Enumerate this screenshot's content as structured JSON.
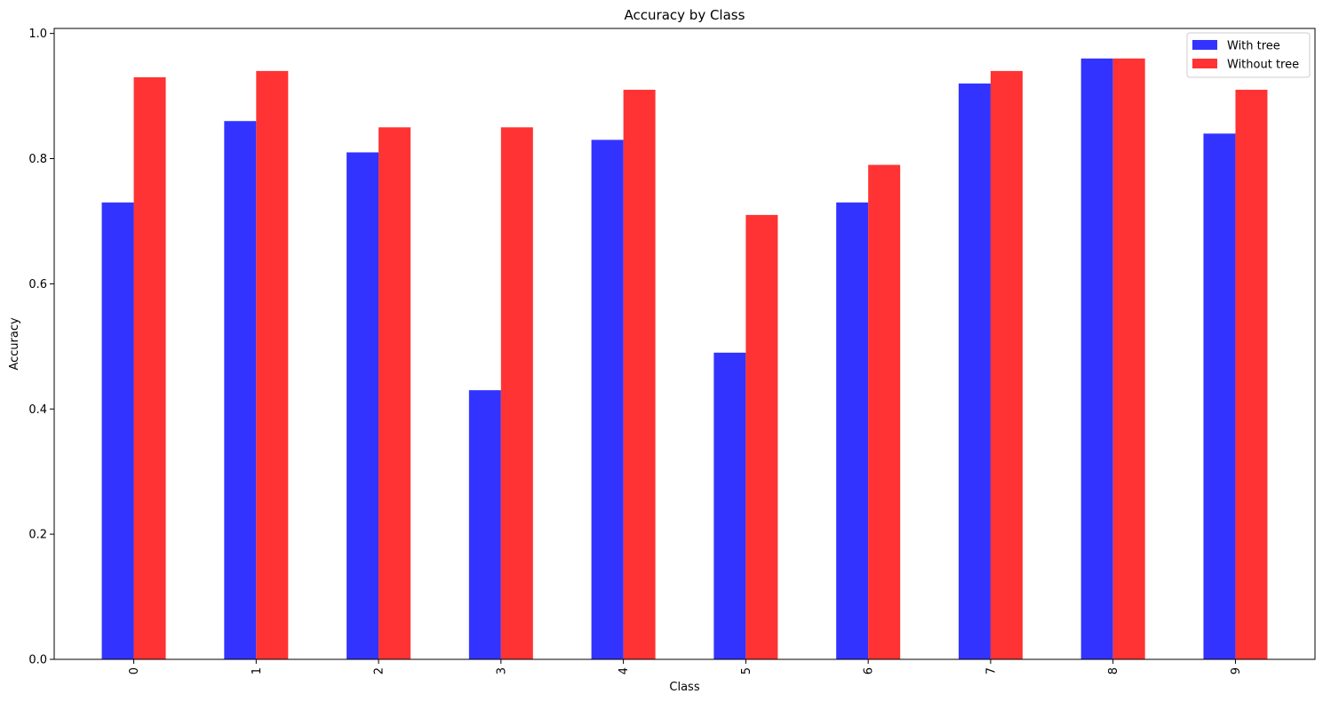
{
  "chart_data": {
    "type": "bar",
    "title": "Accuracy by Class",
    "xlabel": "Class",
    "ylabel": "Accuracy",
    "categories": [
      "0",
      "1",
      "2",
      "3",
      "4",
      "5",
      "6",
      "7",
      "8",
      "9"
    ],
    "series": [
      {
        "name": "With tree",
        "color": "#3333ff",
        "values": [
          0.73,
          0.86,
          0.81,
          0.43,
          0.83,
          0.49,
          0.73,
          0.92,
          0.96,
          0.84
        ]
      },
      {
        "name": "Without tree",
        "color": "#ff3333",
        "values": [
          0.93,
          0.94,
          0.85,
          0.85,
          0.91,
          0.71,
          0.79,
          0.94,
          0.96,
          0.91
        ]
      }
    ],
    "ylim": [
      0,
      1.008
    ],
    "yticks": [
      "0.0",
      "0.2",
      "0.4",
      "0.6",
      "0.8",
      "1.0"
    ],
    "grid": false,
    "legend_position": "top-right",
    "xtick_rotation": "vertical"
  }
}
